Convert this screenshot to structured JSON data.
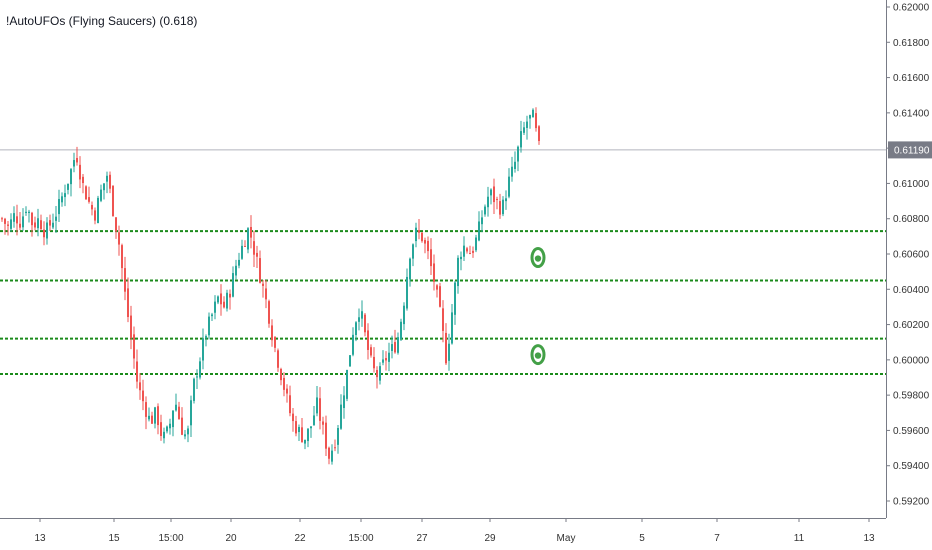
{
  "chart_data": {
    "type": "candlestick",
    "title": "!AutoUFOs (Flying Saucers) (0.618)",
    "y_ticks": [
      "0.62000",
      "0.61800",
      "0.61600",
      "0.61400",
      "0.61200",
      "0.61000",
      "0.60800",
      "0.60600",
      "0.60400",
      "0.60200",
      "0.60000",
      "0.59800",
      "0.59600",
      "0.59400",
      "0.59200"
    ],
    "x_ticks": [
      "13",
      "15",
      "15:00",
      "20",
      "22",
      "15:00",
      "27",
      "29",
      "May",
      "5",
      "7",
      "11",
      "13"
    ],
    "ylim": [
      0.5915,
      0.6205
    ],
    "current_price": {
      "label": "0.61190",
      "value": 0.6119
    },
    "horizontal_levels": [
      0.6073,
      0.6045,
      0.6012,
      0.5992
    ],
    "ufo_markers": [
      {
        "x_label": "29",
        "value": 0.6058
      },
      {
        "x_label": "29",
        "value": 0.6003
      }
    ],
    "series": [
      {
        "name": "",
        "anchors": [
          [
            0.608,
            0.6075,
            0.6082,
            0.6078,
            0.6088,
            0.6076,
            0.608,
            0.6072,
            0.6078,
            0.6085,
            0.6095,
            0.6105,
            0.6118,
            0.61,
            0.609,
            0.6082,
            0.6095,
            0.6105,
            0.6085,
            0.6065,
            0.6035,
            0.601,
            0.5985,
            0.5975,
            0.5965,
            0.597,
            0.5955,
            0.596,
            0.5978,
            0.5962,
            0.5955,
            0.5985,
            0.6,
            0.6015,
            0.6025,
            0.6035,
            0.603,
            0.604,
            0.6055,
            0.6065,
            0.6075,
            0.606,
            0.6045,
            0.603,
            0.601,
            0.5995,
            0.598,
            0.5965,
            0.596,
            0.5955,
            0.5962,
            0.5975,
            0.596,
            0.5945,
            0.5955,
            0.5975,
            0.5995,
            0.602,
            0.603,
            0.601,
            0.5995,
            0.599,
            0.6,
            0.6005,
            0.601,
            0.603,
            0.606,
            0.6072,
            0.607,
            0.606,
            0.6045,
            0.6025,
            0.6,
            0.603,
            0.606,
            0.6065,
            0.606,
            0.607,
            0.6085,
            0.6095,
            0.609,
            0.6085,
            0.61,
            0.611,
            0.6125,
            0.6135,
            0.6138,
            0.612
          ]
        ]
      }
    ]
  }
}
